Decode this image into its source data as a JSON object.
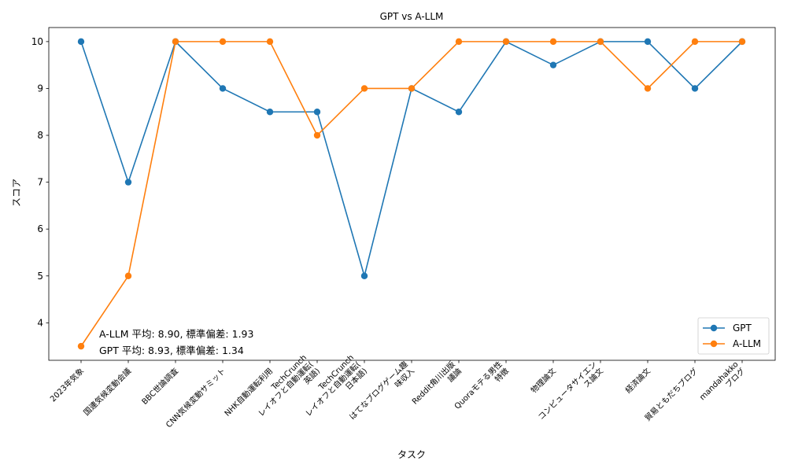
{
  "chart_data": {
    "type": "line",
    "title": "GPT vs A-LLM",
    "xlabel": "タスク",
    "ylabel": "スコア",
    "ylim": [
      3.2,
      10.3
    ],
    "yticks": [
      4,
      5,
      6,
      7,
      8,
      9,
      10
    ],
    "categories": [
      "2023年気象",
      "国連気候変動会議",
      "BBC世論調査",
      "CNN気候変動サミット",
      "NHK自動運転利用",
      "TechCrunch\nレイオフと自動運転(\n英語)",
      "TechCrunch\nレイオフと自動運転(\n日本語)",
      "はてなブログゲーム趣\n味収入",
      "Reddit角川出版\n議論",
      "Quoraモテる男性\n特徴",
      "物理論文",
      "コンピュータサイエン\nス論文",
      "経済論文",
      "貿易ともだちブログ",
      "mandahakko\nブログ"
    ],
    "series": [
      {
        "name": "GPT",
        "color": "#1f77b4",
        "values": [
          10,
          7,
          10,
          9,
          8.5,
          8.5,
          5,
          9,
          8.5,
          10,
          9.5,
          10,
          10,
          9,
          10
        ]
      },
      {
        "name": "A-LLM",
        "color": "#ff7f0e",
        "values": [
          3.5,
          5,
          10,
          10,
          10,
          8,
          9,
          9,
          10,
          10,
          10,
          10,
          9,
          10,
          10
        ]
      }
    ],
    "annotations": [
      "A-LLM 平均: 8.90, 標準偏差: 1.93",
      "GPT 平均: 8.93, 標準偏差: 1.34"
    ],
    "legend_position": "lower-right",
    "grid": false
  }
}
